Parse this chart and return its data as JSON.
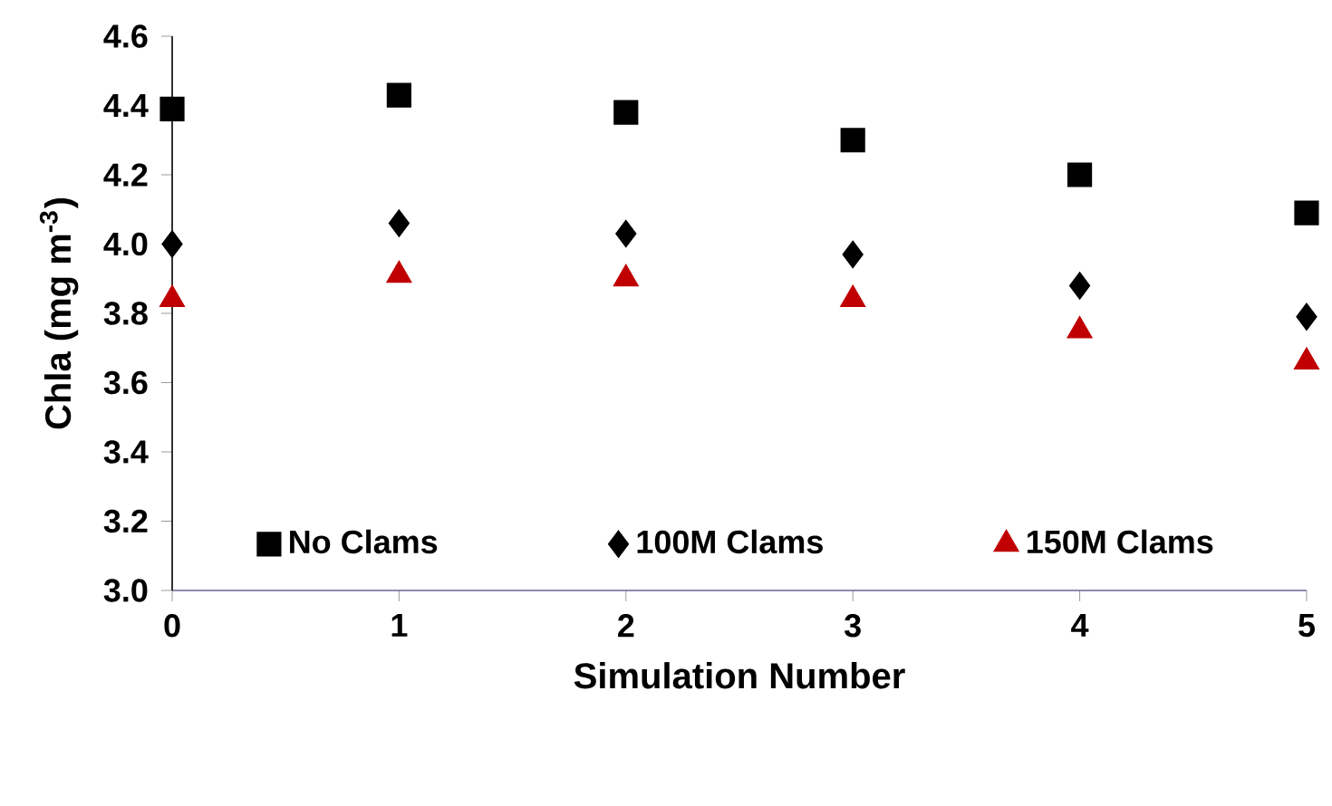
{
  "chart_data": {
    "type": "scatter",
    "xlabel": "Simulation Number",
    "ylabel": "Chla (mg m$^{-3}$)",
    "x": [
      0,
      1,
      2,
      3,
      4,
      5
    ],
    "xlim": [
      0,
      5
    ],
    "xticks": [
      0,
      1,
      2,
      3,
      4,
      5
    ],
    "ylim": [
      3.0,
      4.6
    ],
    "yticks": [
      {
        "value": 3.0,
        "label": "3.0"
      },
      {
        "value": 3.2,
        "label": "3.2"
      },
      {
        "value": 3.4,
        "label": "3.4"
      },
      {
        "value": 3.6,
        "label": "3.6"
      },
      {
        "value": 3.8,
        "label": "3.8"
      },
      {
        "value": 4.0,
        "label": "4.0"
      },
      {
        "value": 4.2,
        "label": "4.2"
      },
      {
        "value": 4.4,
        "label": "4.4"
      },
      {
        "value": 4.6,
        "label": "4.6"
      }
    ],
    "grid": false,
    "legend": "bottom",
    "series": [
      {
        "name": "No Clams",
        "color": "#000000",
        "marker": "square",
        "values": [
          4.39,
          4.43,
          4.38,
          4.3,
          4.2,
          4.09
        ]
      },
      {
        "name": "100M Clams",
        "color": "#000000",
        "marker": "diamond",
        "values": [
          4.0,
          4.06,
          4.03,
          3.97,
          3.88,
          3.79
        ]
      },
      {
        "name": "150M Clams",
        "color": "#c00000",
        "marker": "triangle",
        "values": [
          3.84,
          3.91,
          3.9,
          3.84,
          3.75,
          3.66
        ]
      }
    ]
  }
}
